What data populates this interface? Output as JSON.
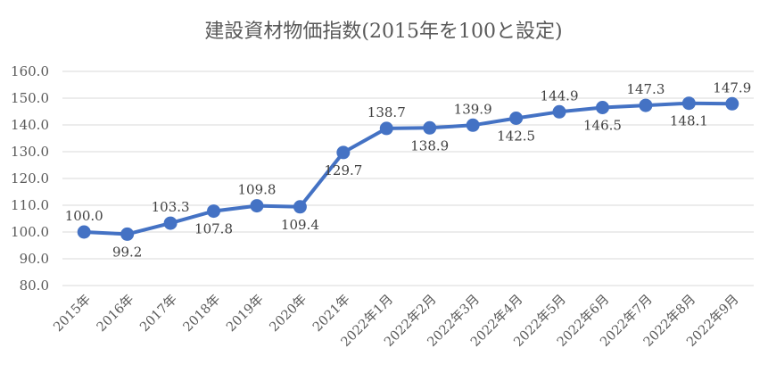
{
  "chart_data": {
    "type": "line",
    "title": "建設資材物価指数(2015年を100と設定)",
    "xlabel": "",
    "ylabel": "",
    "ylim": [
      80,
      160
    ],
    "yticks": [
      "80.0",
      "90.0",
      "100.0",
      "110.0",
      "120.0",
      "130.0",
      "140.0",
      "150.0",
      "160.0"
    ],
    "grid": true,
    "legend": "none",
    "categories": [
      "2015年",
      "2016年",
      "2017年",
      "2018年",
      "2019年",
      "2020年",
      "2021年",
      "2022年1月",
      "2022年2月",
      "2022年3月",
      "2022年4月",
      "2022年5月",
      "2022年6月",
      "2022年7月",
      "2022年8月",
      "2022年9月"
    ],
    "series": [
      {
        "values": [
          100.0,
          99.2,
          103.3,
          107.8,
          109.8,
          109.4,
          129.7,
          138.7,
          138.9,
          139.9,
          142.5,
          144.9,
          146.5,
          147.3,
          148.1,
          147.9
        ],
        "labels": [
          "100.0",
          "99.2",
          "103.3",
          "107.8",
          "109.8",
          "109.4",
          "129.7",
          "138.7",
          "138.9",
          "139.9",
          "142.5",
          "144.9",
          "146.5",
          "147.3",
          "148.1",
          "147.9"
        ],
        "label_side": [
          "above",
          "below",
          "above",
          "below",
          "above",
          "below",
          "below",
          "above",
          "below",
          "above",
          "below",
          "above",
          "below",
          "above",
          "below",
          "above"
        ],
        "color": "#4472c4"
      }
    ]
  }
}
